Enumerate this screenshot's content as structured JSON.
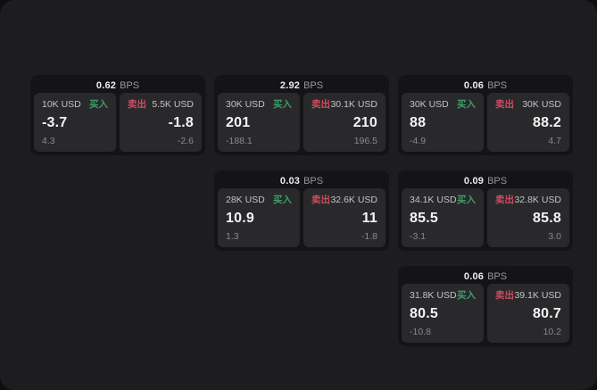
{
  "theme": {
    "outer_bg": "#0e0e10",
    "panel_bg": "#1d1d1f",
    "card_bg": "#141416",
    "tile_bg": "#29292c",
    "buy_color": "#3d9e68",
    "sell_color": "#c94f60",
    "value_color": "#f4f4f5",
    "muted_color": "#8a8a8e"
  },
  "cards": [
    {
      "row": 1,
      "col": 1,
      "bps": "0.62",
      "bps_unit": "BPS",
      "buy": {
        "amount": "10K USD",
        "side_label": "买入",
        "value": "-3.7",
        "change": "4.3"
      },
      "sell": {
        "side_label": "卖出",
        "amount": "5.5K USD",
        "value": "-1.8",
        "change": "-2.6"
      }
    },
    {
      "row": 1,
      "col": 2,
      "bps": "2.92",
      "bps_unit": "BPS",
      "buy": {
        "amount": "30K USD",
        "side_label": "买入",
        "value": "201",
        "change": "-188.1"
      },
      "sell": {
        "side_label": "卖出",
        "amount": "30.1K USD",
        "value": "210",
        "change": "196.5"
      }
    },
    {
      "row": 1,
      "col": 3,
      "bps": "0.06",
      "bps_unit": "BPS",
      "buy": {
        "amount": "30K USD",
        "side_label": "买入",
        "value": "88",
        "change": "-4.9"
      },
      "sell": {
        "side_label": "卖出",
        "amount": "30K USD",
        "value": "88.2",
        "change": "4.7"
      }
    },
    {
      "row": 2,
      "col": 2,
      "bps": "0.03",
      "bps_unit": "BPS",
      "buy": {
        "amount": "28K USD",
        "side_label": "买入",
        "value": "10.9",
        "change": "1.3"
      },
      "sell": {
        "side_label": "卖出",
        "amount": "32.6K USD",
        "value": "11",
        "change": "-1.8"
      }
    },
    {
      "row": 2,
      "col": 3,
      "bps": "0.09",
      "bps_unit": "BPS",
      "buy": {
        "amount": "34.1K USD",
        "side_label": "买入",
        "value": "85.5",
        "change": "-3.1"
      },
      "sell": {
        "side_label": "卖出",
        "amount": "32.8K USD",
        "value": "85.8",
        "change": "3.0"
      }
    },
    {
      "row": 3,
      "col": 3,
      "bps": "0.06",
      "bps_unit": "BPS",
      "buy": {
        "amount": "31.8K USD",
        "side_label": "买入",
        "value": "80.5",
        "change": "-10.8"
      },
      "sell": {
        "side_label": "卖出",
        "amount": "39.1K USD",
        "value": "80.7",
        "change": "10.2"
      }
    }
  ]
}
